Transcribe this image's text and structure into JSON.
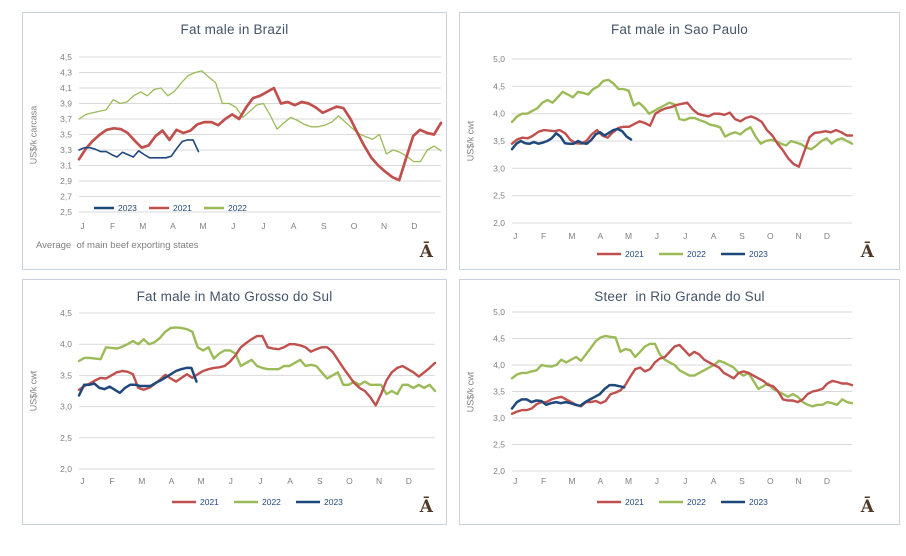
{
  "page": {
    "background": "#ffffff"
  },
  "logo": {
    "glyph": "Ā",
    "color": "#4f3a2a"
  },
  "colors": {
    "red": "#c0504d",
    "green": "#9bbb59",
    "blue": "#1f497d",
    "grid": "#d9d9d9",
    "axis_text": "#808080",
    "title_text": "#44546a",
    "legend_text": "#1f497d",
    "panel_border": "#c9d2e0"
  },
  "chart_data": [
    {
      "type": "line",
      "title": "Fat male in Brazil",
      "ylabel": "US$/k carcasa",
      "ylim": [
        2.5,
        4.5
      ],
      "ytick_values": [
        4.5,
        4.3,
        4.1,
        3.9,
        3.7,
        3.5,
        3.3,
        3.1,
        2.9,
        2.7,
        2.5
      ],
      "ytick_labels": [
        "4,5",
        "4,3",
        "4,1",
        "3,9",
        "3,7",
        "3,5",
        "3,3",
        "3,1",
        "2,9",
        "2,7",
        "2,5"
      ],
      "x_categories": [
        "J",
        "F",
        "M",
        "A",
        "M",
        "J",
        "J",
        "A",
        "S",
        "O",
        "N",
        "D"
      ],
      "footnote": "Average  of main beef exporting states",
      "legend": {
        "position": "inside-bottom",
        "entries": [
          {
            "label": "2023",
            "color_key": "blue"
          },
          {
            "label": "2021",
            "color_key": "red"
          },
          {
            "label": "2022",
            "color_key": "green"
          }
        ]
      },
      "series": [
        {
          "name": "2022",
          "color_key": "green",
          "width": 1.3,
          "end_frac": 1.0,
          "values": [
            3.7,
            3.76,
            3.78,
            3.8,
            3.82,
            3.95,
            3.9,
            3.92,
            4.0,
            4.05,
            4.0,
            4.08,
            4.1,
            4.0,
            4.06,
            4.17,
            4.26,
            4.3,
            4.32,
            4.24,
            4.17,
            3.9,
            3.9,
            3.85,
            3.72,
            3.8,
            3.88,
            3.9,
            3.75,
            3.57,
            3.65,
            3.72,
            3.68,
            3.63,
            3.6,
            3.6,
            3.62,
            3.66,
            3.74,
            3.66,
            3.58,
            3.51,
            3.47,
            3.44,
            3.5,
            3.25,
            3.3,
            3.27,
            3.22,
            3.15,
            3.15,
            3.3,
            3.35,
            3.29
          ]
        },
        {
          "name": "2021",
          "color_key": "red",
          "width": 2.7,
          "end_frac": 1.0,
          "values": [
            3.18,
            3.32,
            3.42,
            3.5,
            3.56,
            3.58,
            3.57,
            3.52,
            3.42,
            3.33,
            3.36,
            3.48,
            3.55,
            3.43,
            3.56,
            3.52,
            3.55,
            3.63,
            3.66,
            3.66,
            3.62,
            3.7,
            3.76,
            3.7,
            3.85,
            3.97,
            4.0,
            4.05,
            4.1,
            3.9,
            3.92,
            3.88,
            3.92,
            3.9,
            3.85,
            3.78,
            3.82,
            3.86,
            3.84,
            3.7,
            3.52,
            3.35,
            3.2,
            3.1,
            3.02,
            2.95,
            2.91,
            3.2,
            3.48,
            3.56,
            3.52,
            3.5,
            3.65
          ]
        },
        {
          "name": "2023",
          "color_key": "blue",
          "width": 1.6,
          "end_frac": 0.33,
          "values": [
            3.3,
            3.33,
            3.33,
            3.31,
            3.28,
            3.28,
            3.24,
            3.21,
            3.27,
            3.24,
            3.21,
            3.29,
            3.24,
            3.2,
            3.2,
            3.2,
            3.2,
            3.22,
            3.32,
            3.41,
            3.43,
            3.43,
            3.28
          ]
        }
      ]
    },
    {
      "type": "line",
      "title": "Fat male in Sao Paulo",
      "ylabel": "US$/k cwt",
      "ylim": [
        2.0,
        5.0
      ],
      "ytick_values": [
        5.0,
        4.5,
        4.0,
        3.5,
        3.0,
        2.5,
        2.0
      ],
      "ytick_labels": [
        "5,0",
        "4,5",
        "4,0",
        "3,5",
        "3,0",
        "2,5",
        "2,0"
      ],
      "x_categories": [
        "J",
        "F",
        "M",
        "A",
        "M",
        "J",
        "J",
        "A",
        "S",
        "O",
        "N",
        "D"
      ],
      "legend": {
        "position": "below",
        "entries": [
          {
            "label": "2021",
            "color_key": "red"
          },
          {
            "label": "2022",
            "color_key": "green"
          },
          {
            "label": "2023",
            "color_key": "blue"
          }
        ]
      },
      "series": [
        {
          "name": "2022",
          "color_key": "green",
          "width": 2.4,
          "end_frac": 1.0,
          "values": [
            3.85,
            3.95,
            4.0,
            4.0,
            4.05,
            4.1,
            4.2,
            4.25,
            4.2,
            4.3,
            4.4,
            4.35,
            4.3,
            4.4,
            4.38,
            4.35,
            4.45,
            4.5,
            4.6,
            4.62,
            4.55,
            4.45,
            4.45,
            4.42,
            4.15,
            4.2,
            4.12,
            4.0,
            4.05,
            4.1,
            4.15,
            4.2,
            4.17,
            3.9,
            3.88,
            3.92,
            3.92,
            3.88,
            3.85,
            3.8,
            3.78,
            3.75,
            3.58,
            3.63,
            3.66,
            3.62,
            3.7,
            3.75,
            3.58,
            3.45,
            3.5,
            3.52,
            3.5,
            3.45,
            3.42,
            3.5,
            3.47,
            3.44,
            3.38,
            3.35,
            3.42,
            3.5,
            3.55,
            3.45,
            3.52,
            3.55,
            3.5,
            3.45
          ]
        },
        {
          "name": "2021",
          "color_key": "red",
          "width": 2.4,
          "end_frac": 1.0,
          "values": [
            3.45,
            3.53,
            3.56,
            3.55,
            3.6,
            3.67,
            3.7,
            3.69,
            3.68,
            3.7,
            3.64,
            3.52,
            3.46,
            3.45,
            3.5,
            3.62,
            3.7,
            3.6,
            3.56,
            3.66,
            3.74,
            3.76,
            3.76,
            3.81,
            3.86,
            3.83,
            3.78,
            4.0,
            4.06,
            4.1,
            4.12,
            4.16,
            4.18,
            4.2,
            4.08,
            4.0,
            3.97,
            3.95,
            4.0,
            4.0,
            3.98,
            4.02,
            3.9,
            3.86,
            3.92,
            3.95,
            3.91,
            3.85,
            3.7,
            3.6,
            3.45,
            3.33,
            3.18,
            3.08,
            3.03,
            3.3,
            3.57,
            3.65,
            3.66,
            3.68,
            3.66,
            3.7,
            3.66,
            3.6,
            3.6
          ]
        },
        {
          "name": "2023",
          "color_key": "blue",
          "width": 2.5,
          "end_frac": 0.35,
          "values": [
            3.35,
            3.45,
            3.5,
            3.46,
            3.45,
            3.48,
            3.45,
            3.47,
            3.5,
            3.55,
            3.64,
            3.58,
            3.46,
            3.45,
            3.45,
            3.5,
            3.46,
            3.45,
            3.52,
            3.62,
            3.66,
            3.6,
            3.65,
            3.7,
            3.72,
            3.68,
            3.58,
            3.53
          ]
        }
      ]
    },
    {
      "type": "line",
      "title": "Fat male in Mato Grosso do Sul",
      "ylabel": "US$/k cwt",
      "ylim": [
        2.0,
        4.5
      ],
      "ytick_values": [
        4.5,
        4.0,
        3.5,
        3.0,
        2.5,
        2.0
      ],
      "ytick_labels": [
        "4,5",
        "4,0",
        "3,5",
        "3,0",
        "2,5",
        "2,0"
      ],
      "x_categories": [
        "J",
        "F",
        "M",
        "A",
        "M",
        "J",
        "J",
        "A",
        "S",
        "O",
        "N",
        "D"
      ],
      "legend": {
        "position": "below",
        "entries": [
          {
            "label": "2021",
            "color_key": "red"
          },
          {
            "label": "2022",
            "color_key": "green"
          },
          {
            "label": "2023",
            "color_key": "blue"
          }
        ]
      },
      "series": [
        {
          "name": "2022",
          "color_key": "green",
          "width": 2.4,
          "end_frac": 1.0,
          "values": [
            3.73,
            3.78,
            3.78,
            3.77,
            3.76,
            3.95,
            3.94,
            3.93,
            3.96,
            4.0,
            4.05,
            4.0,
            4.08,
            4.0,
            4.03,
            4.1,
            4.2,
            4.26,
            4.27,
            4.26,
            4.24,
            4.2,
            3.95,
            3.9,
            3.95,
            3.77,
            3.85,
            3.9,
            3.9,
            3.85,
            3.65,
            3.7,
            3.75,
            3.65,
            3.62,
            3.6,
            3.6,
            3.6,
            3.65,
            3.65,
            3.7,
            3.75,
            3.65,
            3.67,
            3.65,
            3.55,
            3.45,
            3.5,
            3.55,
            3.35,
            3.35,
            3.4,
            3.35,
            3.4,
            3.35,
            3.35,
            3.35,
            3.2,
            3.25,
            3.2,
            3.35,
            3.35,
            3.3,
            3.35,
            3.3,
            3.35,
            3.25
          ]
        },
        {
          "name": "2021",
          "color_key": "red",
          "width": 2.4,
          "end_frac": 1.0,
          "values": [
            3.27,
            3.33,
            3.37,
            3.42,
            3.46,
            3.45,
            3.5,
            3.55,
            3.57,
            3.56,
            3.52,
            3.3,
            3.27,
            3.3,
            3.36,
            3.43,
            3.51,
            3.45,
            3.4,
            3.46,
            3.52,
            3.46,
            3.52,
            3.57,
            3.6,
            3.62,
            3.63,
            3.65,
            3.72,
            3.82,
            3.95,
            4.02,
            4.08,
            4.13,
            4.13,
            3.95,
            3.93,
            3.92,
            3.95,
            4.0,
            4.0,
            3.98,
            3.95,
            3.88,
            3.92,
            3.95,
            3.95,
            3.88,
            3.75,
            3.62,
            3.5,
            3.38,
            3.3,
            3.25,
            3.15,
            3.02,
            3.2,
            3.42,
            3.55,
            3.62,
            3.65,
            3.6,
            3.55,
            3.48,
            3.55,
            3.62,
            3.7
          ]
        },
        {
          "name": "2023",
          "color_key": "blue",
          "width": 2.5,
          "end_frac": 0.33,
          "values": [
            3.18,
            3.35,
            3.35,
            3.37,
            3.3,
            3.28,
            3.32,
            3.27,
            3.22,
            3.3,
            3.35,
            3.35,
            3.33,
            3.33,
            3.33,
            3.38,
            3.42,
            3.47,
            3.52,
            3.57,
            3.6,
            3.62,
            3.62,
            3.4
          ]
        }
      ]
    },
    {
      "type": "line",
      "title": "Steer  in Rio Grande do Sul",
      "ylabel": "US$/k cwt",
      "ylim": [
        2.0,
        5.0
      ],
      "ytick_values": [
        5.0,
        4.5,
        4.0,
        3.5,
        3.0,
        2.5,
        2.0
      ],
      "ytick_labels": [
        "5,0",
        "4,5",
        "4,0",
        "3,5",
        "3,0",
        "2,5",
        "2,0"
      ],
      "x_categories": [
        "J",
        "F",
        "M",
        "A",
        "M",
        "J",
        "J",
        "A",
        "S",
        "O",
        "N",
        "D"
      ],
      "legend": {
        "position": "below",
        "entries": [
          {
            "label": "2021",
            "color_key": "red"
          },
          {
            "label": "2022",
            "color_key": "green"
          },
          {
            "label": "2023",
            "color_key": "blue"
          }
        ]
      },
      "series": [
        {
          "name": "2022",
          "color_key": "green",
          "width": 2.4,
          "end_frac": 1.0,
          "values": [
            3.75,
            3.82,
            3.85,
            3.85,
            3.88,
            3.9,
            4.0,
            3.98,
            3.97,
            4.0,
            4.1,
            4.05,
            4.1,
            4.15,
            4.08,
            4.2,
            4.32,
            4.45,
            4.52,
            4.55,
            4.53,
            4.52,
            4.25,
            4.3,
            4.28,
            4.15,
            4.25,
            4.35,
            4.4,
            4.4,
            4.2,
            4.1,
            4.05,
            4.0,
            3.9,
            3.85,
            3.8,
            3.8,
            3.85,
            3.9,
            3.95,
            4.0,
            4.08,
            4.05,
            4.0,
            3.95,
            3.85,
            3.8,
            3.85,
            3.7,
            3.55,
            3.6,
            3.65,
            3.55,
            3.5,
            3.45,
            3.4,
            3.45,
            3.4,
            3.3,
            3.25,
            3.22,
            3.25,
            3.25,
            3.3,
            3.28,
            3.25,
            3.35,
            3.3,
            3.28
          ]
        },
        {
          "name": "2021",
          "color_key": "red",
          "width": 2.4,
          "end_frac": 1.0,
          "values": [
            3.08,
            3.12,
            3.15,
            3.15,
            3.18,
            3.26,
            3.3,
            3.3,
            3.35,
            3.38,
            3.4,
            3.35,
            3.3,
            3.25,
            3.22,
            3.3,
            3.3,
            3.32,
            3.28,
            3.32,
            3.45,
            3.48,
            3.52,
            3.62,
            3.78,
            3.92,
            3.95,
            3.88,
            3.92,
            4.05,
            4.12,
            4.15,
            4.25,
            4.35,
            4.38,
            4.28,
            4.18,
            4.25,
            4.2,
            4.1,
            4.05,
            4.0,
            3.95,
            3.85,
            3.8,
            3.75,
            3.85,
            3.88,
            3.85,
            3.8,
            3.75,
            3.7,
            3.62,
            3.6,
            3.5,
            3.35,
            3.33,
            3.33,
            3.3,
            3.35,
            3.45,
            3.5,
            3.52,
            3.55,
            3.65,
            3.7,
            3.68,
            3.65,
            3.65,
            3.62
          ]
        },
        {
          "name": "2023",
          "color_key": "blue",
          "width": 2.5,
          "end_frac": 0.33,
          "values": [
            3.18,
            3.3,
            3.35,
            3.35,
            3.3,
            3.33,
            3.32,
            3.25,
            3.28,
            3.3,
            3.28,
            3.3,
            3.28,
            3.25,
            3.23,
            3.3,
            3.35,
            3.4,
            3.45,
            3.55,
            3.62,
            3.62,
            3.6,
            3.58
          ]
        }
      ]
    }
  ]
}
